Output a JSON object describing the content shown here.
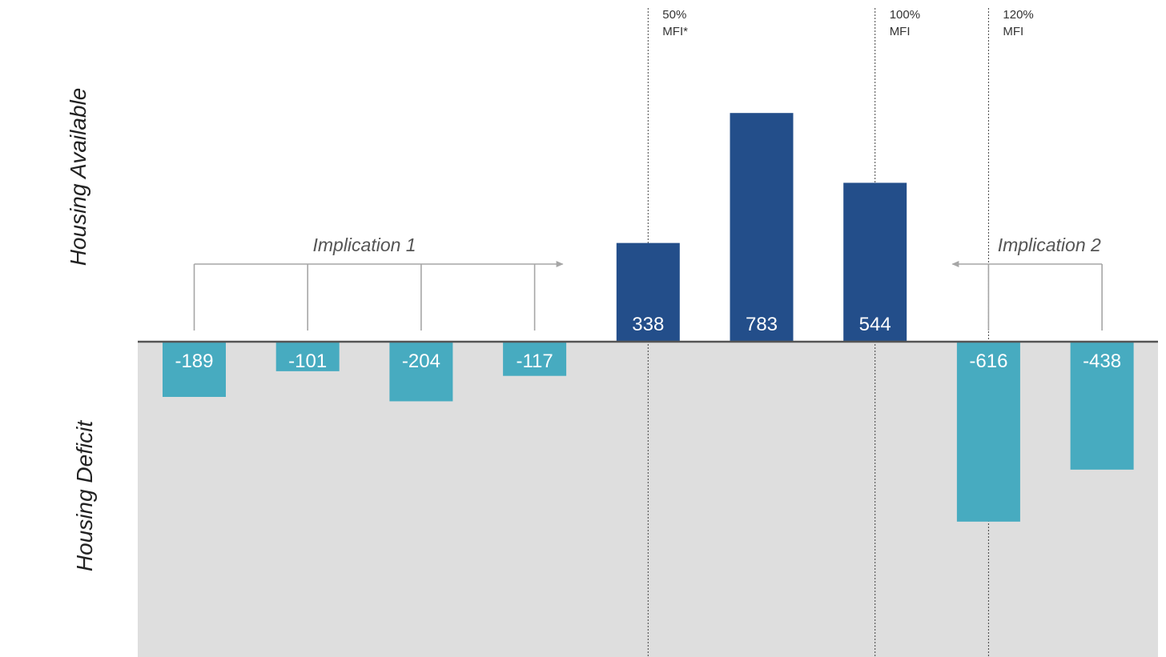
{
  "axis_labels": {
    "top": "Housing Available",
    "bottom": "Housing Deficit"
  },
  "reference_lines": [
    {
      "position_after_bar": 4,
      "label_line1": "50%",
      "label_line2": "MFI*"
    },
    {
      "position_after_bar": 6,
      "label_line1": "100%",
      "label_line2": "MFI"
    },
    {
      "position_after_bar": 7,
      "label_line1": "120%",
      "label_line2": "MFI"
    }
  ],
  "implications": [
    {
      "label": "Implication 1",
      "bars": [
        0,
        1,
        2,
        3
      ],
      "arrow": "right"
    },
    {
      "label": "Implication 2",
      "bars": [
        7,
        8
      ],
      "arrow": "left"
    }
  ],
  "colors": {
    "positive": "#234e8a",
    "negative": "#47abc0",
    "deficit_background": "#dedede",
    "baseline": "#555555",
    "bracket": "#a6a6a6"
  },
  "chart_data": {
    "type": "bar",
    "categories": [
      "",
      "",
      "",
      "",
      "",
      "",
      "",
      "",
      ""
    ],
    "values": [
      -189,
      -101,
      -204,
      -117,
      338,
      783,
      544,
      -616,
      -438
    ],
    "value_labels": [
      "-189",
      "-101",
      "-204",
      "-117",
      "338",
      "783",
      "544",
      "-616",
      "-438"
    ],
    "title": "",
    "xlabel": "",
    "ylabel_top": "Housing Available",
    "ylabel_bottom": "Housing Deficit",
    "grid": false,
    "legend": "none"
  }
}
